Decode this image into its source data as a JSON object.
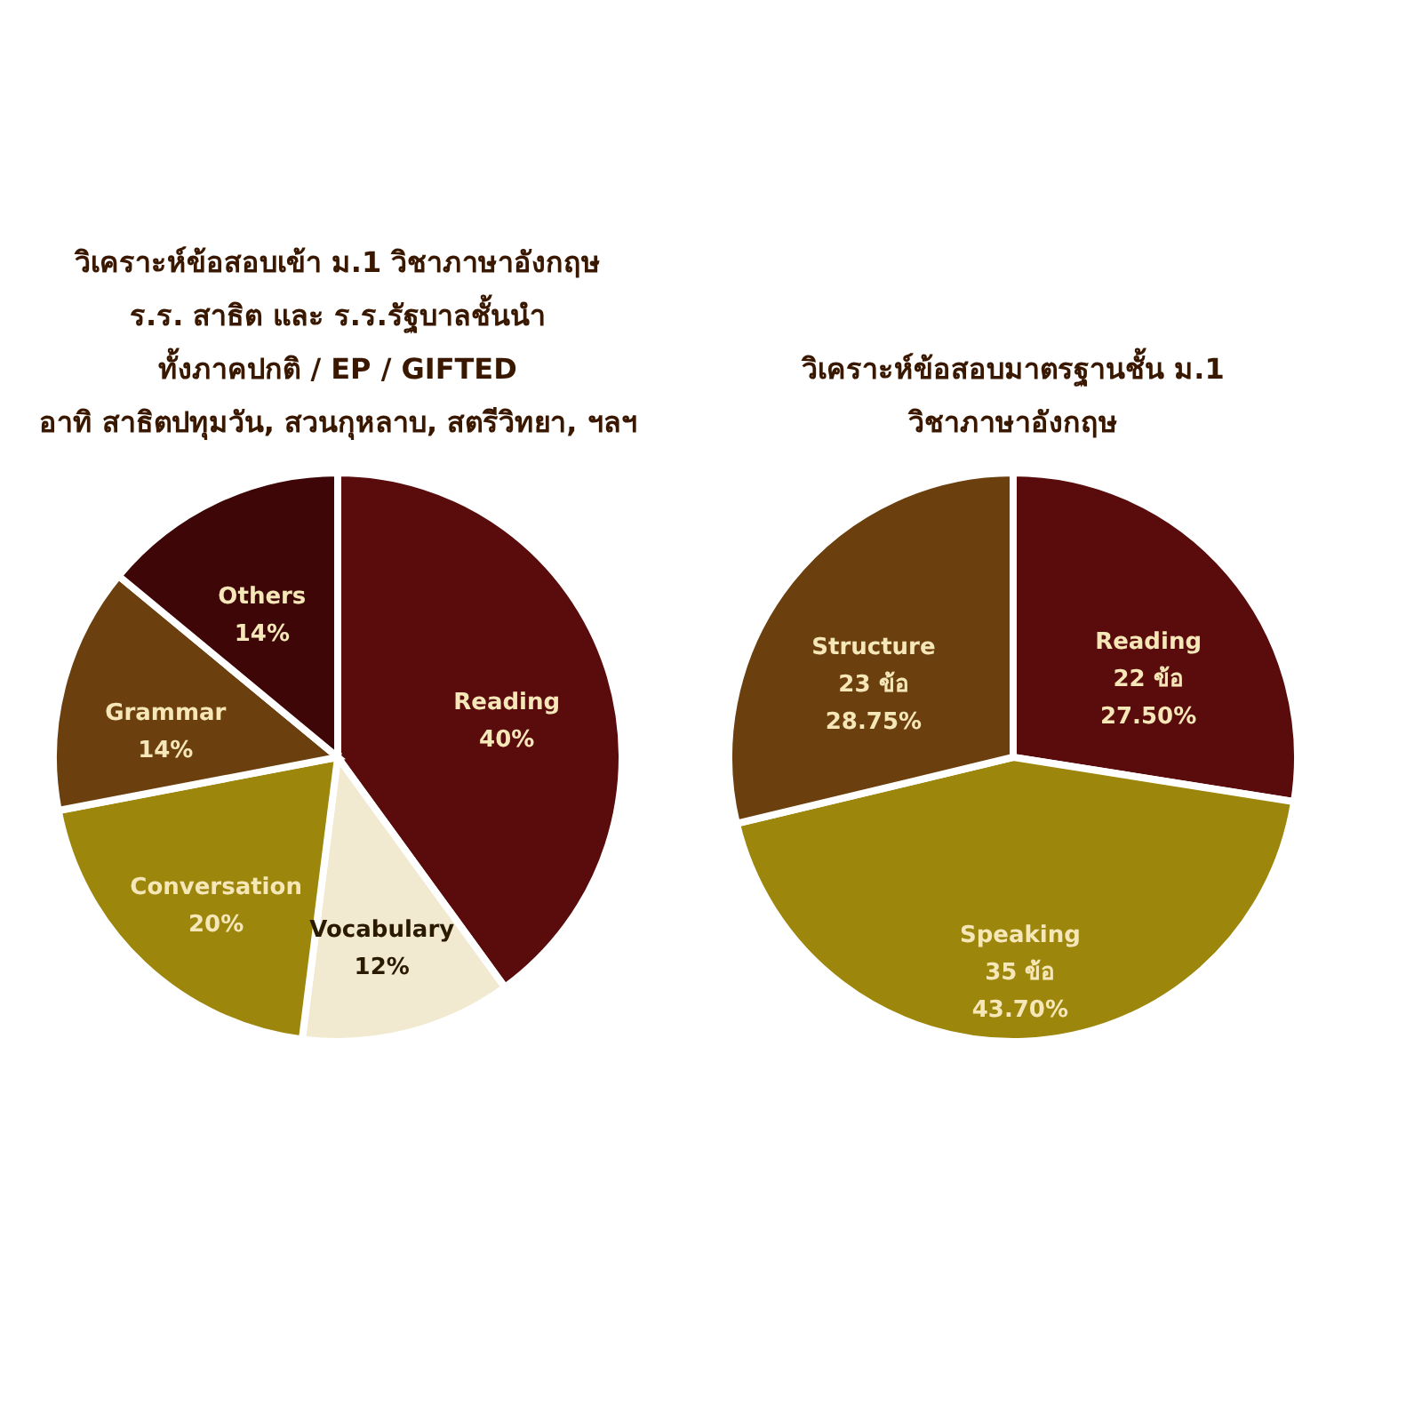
{
  "chart_data": [
    {
      "type": "pie",
      "title": "วิเคราะห์ข้อสอบเข้า ม.1 วิชาภาษาอังกฤษ\nร.ร. สาธิต และ ร.ร.รัฐบาลชั้นนำ\nทั้งภาคปกติ / EP / GIFTED\nอาทิ สาธิตปทุมวัน, สวนกุหลาบ, สตรีวิทยา, ฯลฯ",
      "categories": [
        "Reading",
        "Vocabulary",
        "Conversation",
        "Grammar",
        "Others"
      ],
      "values": [
        40,
        12,
        20,
        14,
        14
      ],
      "colors": [
        "#5a0c0c",
        "#f1ead0",
        "#9c860c",
        "#6b400e",
        "#3e0606"
      ],
      "value_labels": [
        "40%",
        "12%",
        "20%",
        "14%",
        "14%"
      ]
    },
    {
      "type": "pie",
      "title": "วิเคราะห์ข้อสอบมาตรฐานชั้น ม.1\nวิชาภาษาอังกฤษ",
      "categories": [
        "Reading",
        "Speaking",
        "Structure"
      ],
      "values": [
        22,
        35,
        23
      ],
      "colors": [
        "#5a0c0c",
        "#9c860c",
        "#6b400e"
      ],
      "value_labels": [
        "22 ข้อ\n27.50%",
        "35 ข้อ\n43.70%",
        "23 ข้อ\n28.75%"
      ]
    }
  ]
}
